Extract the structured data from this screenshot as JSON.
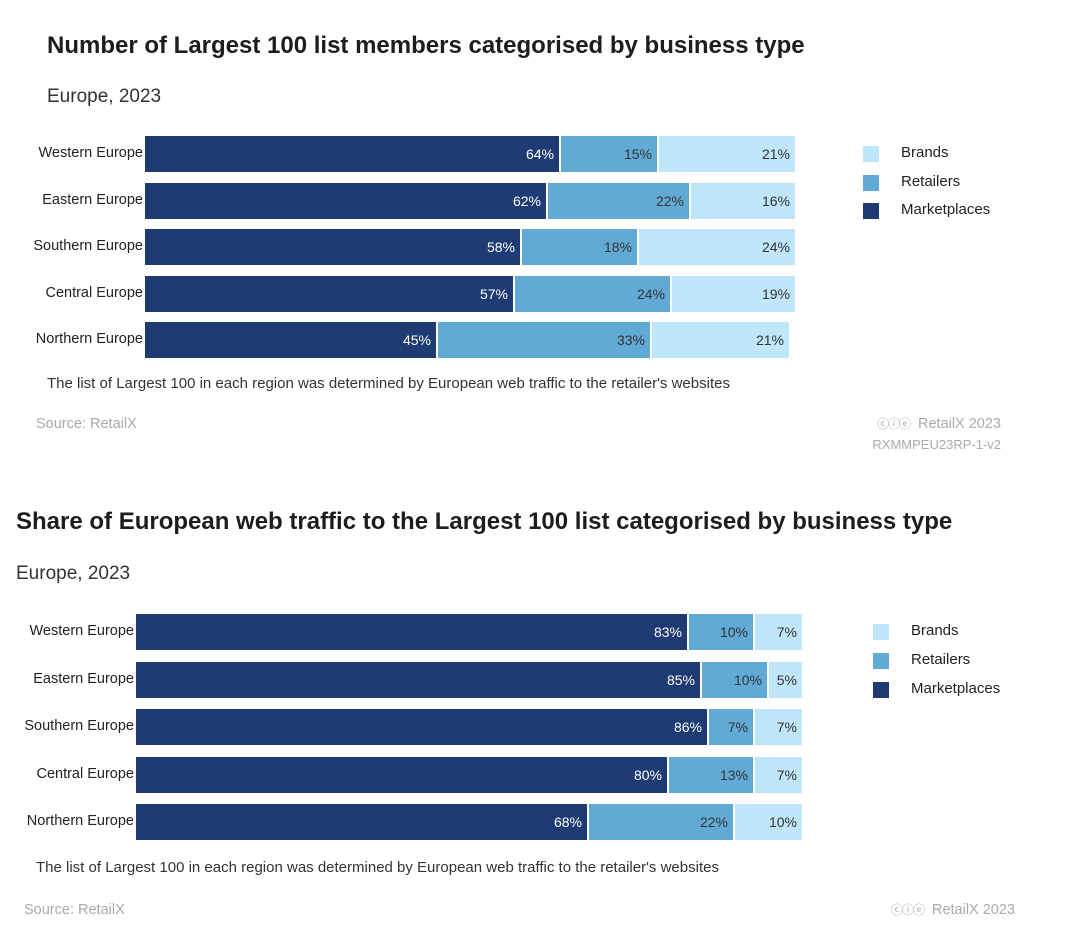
{
  "colors": {
    "marketplaces": "#1f3b73",
    "retailers": "#62aad6",
    "brands": "#bfe6fa"
  },
  "chart_data": [
    {
      "type": "bar",
      "orientation": "horizontal",
      "stacked": true,
      "title": "Number of Largest 100 list members categorised by business type",
      "subtitle": "Europe, 2023",
      "categories": [
        "Western Europe",
        "Eastern Europe",
        "Southern Europe",
        "Central Europe",
        "Northern Europe"
      ],
      "series": [
        {
          "name": "Marketplaces",
          "values": [
            64,
            62,
            58,
            57,
            45
          ]
        },
        {
          "name": "Retailers",
          "values": [
            15,
            22,
            18,
            24,
            33
          ]
        },
        {
          "name": "Brands",
          "values": [
            21,
            16,
            24,
            19,
            21
          ]
        }
      ],
      "legend": [
        "Brands",
        "Retailers",
        "Marketplaces"
      ],
      "value_suffix": "%",
      "xlim": [
        0,
        100
      ],
      "note": "The list of Largest 100 in each region was determined by European web traffic to the retailer's websites",
      "source": "Source: RetailX",
      "credit": "RetailX 2023",
      "code": "RXMMPEU23RP-1-v2"
    },
    {
      "type": "bar",
      "orientation": "horizontal",
      "stacked": true,
      "title": "Share of European web traffic to the Largest 100 list categorised by business type",
      "subtitle": "Europe, 2023",
      "categories": [
        "Western Europe",
        "Eastern Europe",
        "Southern Europe",
        "Central Europe",
        "Northern Europe"
      ],
      "series": [
        {
          "name": "Marketplaces",
          "values": [
            83,
            85,
            86,
            80,
            68
          ]
        },
        {
          "name": "Retailers",
          "values": [
            10,
            10,
            7,
            13,
            22
          ]
        },
        {
          "name": "Brands",
          "values": [
            7,
            5,
            7,
            7,
            10
          ]
        }
      ],
      "legend": [
        "Brands",
        "Retailers",
        "Marketplaces"
      ],
      "value_suffix": "%",
      "xlim": [
        0,
        100
      ],
      "note": "The list of Largest 100 in each region was determined by European web traffic to the retailer's websites",
      "source": "Source: RetailX",
      "credit": "RetailX 2023"
    }
  ]
}
